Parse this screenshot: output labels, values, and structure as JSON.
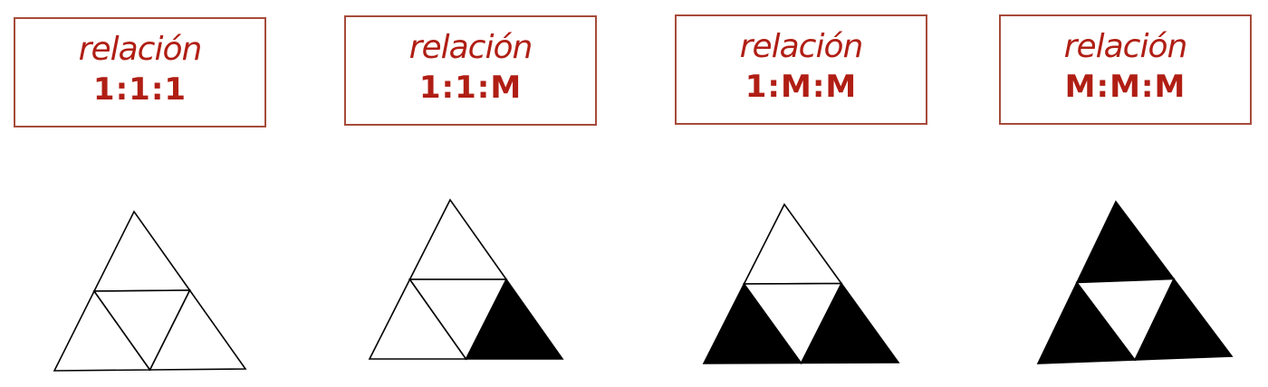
{
  "relations": [
    {
      "title": "relación",
      "ratio": "1:1:1",
      "filled": [
        false,
        false,
        false,
        false
      ]
    },
    {
      "title": "relación",
      "ratio": "1:1:M",
      "filled": [
        false,
        false,
        true,
        false
      ]
    },
    {
      "title": "relación",
      "ratio": "1:M:M",
      "filled": [
        false,
        true,
        true,
        false
      ]
    },
    {
      "title": "relación",
      "ratio": "M:M:M",
      "filled": [
        true,
        true,
        true,
        false
      ]
    }
  ],
  "colors": {
    "label_text": "#b01e14",
    "box_border": "#a64b3a",
    "fill": "#000000",
    "stroke": "#000000"
  }
}
